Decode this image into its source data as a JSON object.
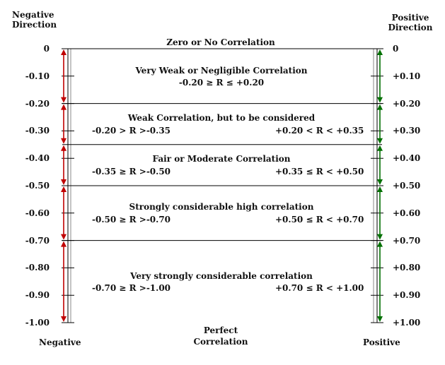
{
  "header": {
    "left_title": [
      "Negative",
      "Direction"
    ],
    "right_title": [
      "Positive",
      "Direction"
    ]
  },
  "top_label": "Zero or No Correlation",
  "bottom_labels": {
    "left": "Negative",
    "center": [
      "Perfect",
      "Correlation"
    ],
    "right": "Positive"
  },
  "left_ticks": [
    "0",
    "-0.10",
    "-0.20",
    "-0.30",
    "-0.40",
    "-0.50",
    "-0.60",
    "-0.70",
    "-0.80",
    "-0.90",
    "-1.00"
  ],
  "right_ticks": [
    "0",
    "+0.10",
    "+0.20",
    "+0.30",
    "+0.40",
    "+0.50",
    "+0.60",
    "+0.70",
    "+0.80",
    "+0.90",
    "+1.00"
  ],
  "bands": [
    {
      "name": "Very Weak or Negligible Correlation",
      "range": "-0.20 ≥ R ≤ +0.20",
      "from": 0.0,
      "to": 0.2
    },
    {
      "name": "Weak Correlation, but to be considered",
      "neg_range": "-0.20 > R >-0.35",
      "pos_range": "+0.20 < R < +0.35",
      "from": 0.2,
      "to": 0.35
    },
    {
      "name": "Fair or Moderate Correlation",
      "neg_range": "-0.35 ≥ R >-0.50",
      "pos_range": "+0.35 ≤ R < +0.50",
      "from": 0.35,
      "to": 0.5
    },
    {
      "name": "Strongly considerable high correlation",
      "neg_range": "-0.50 ≥ R >-0.70",
      "pos_range": "+0.50 ≤ R < +0.70",
      "from": 0.5,
      "to": 0.7
    },
    {
      "name": "Very strongly considerable correlation",
      "neg_range": "-0.70 ≥ R >-1.00",
      "pos_range": "+0.70 ≤ R < +1.00",
      "from": 0.7,
      "to": 1.0
    }
  ],
  "colors": {
    "negative_arrow": "#c00000",
    "positive_arrow": "#007000",
    "lines": "#000000"
  }
}
